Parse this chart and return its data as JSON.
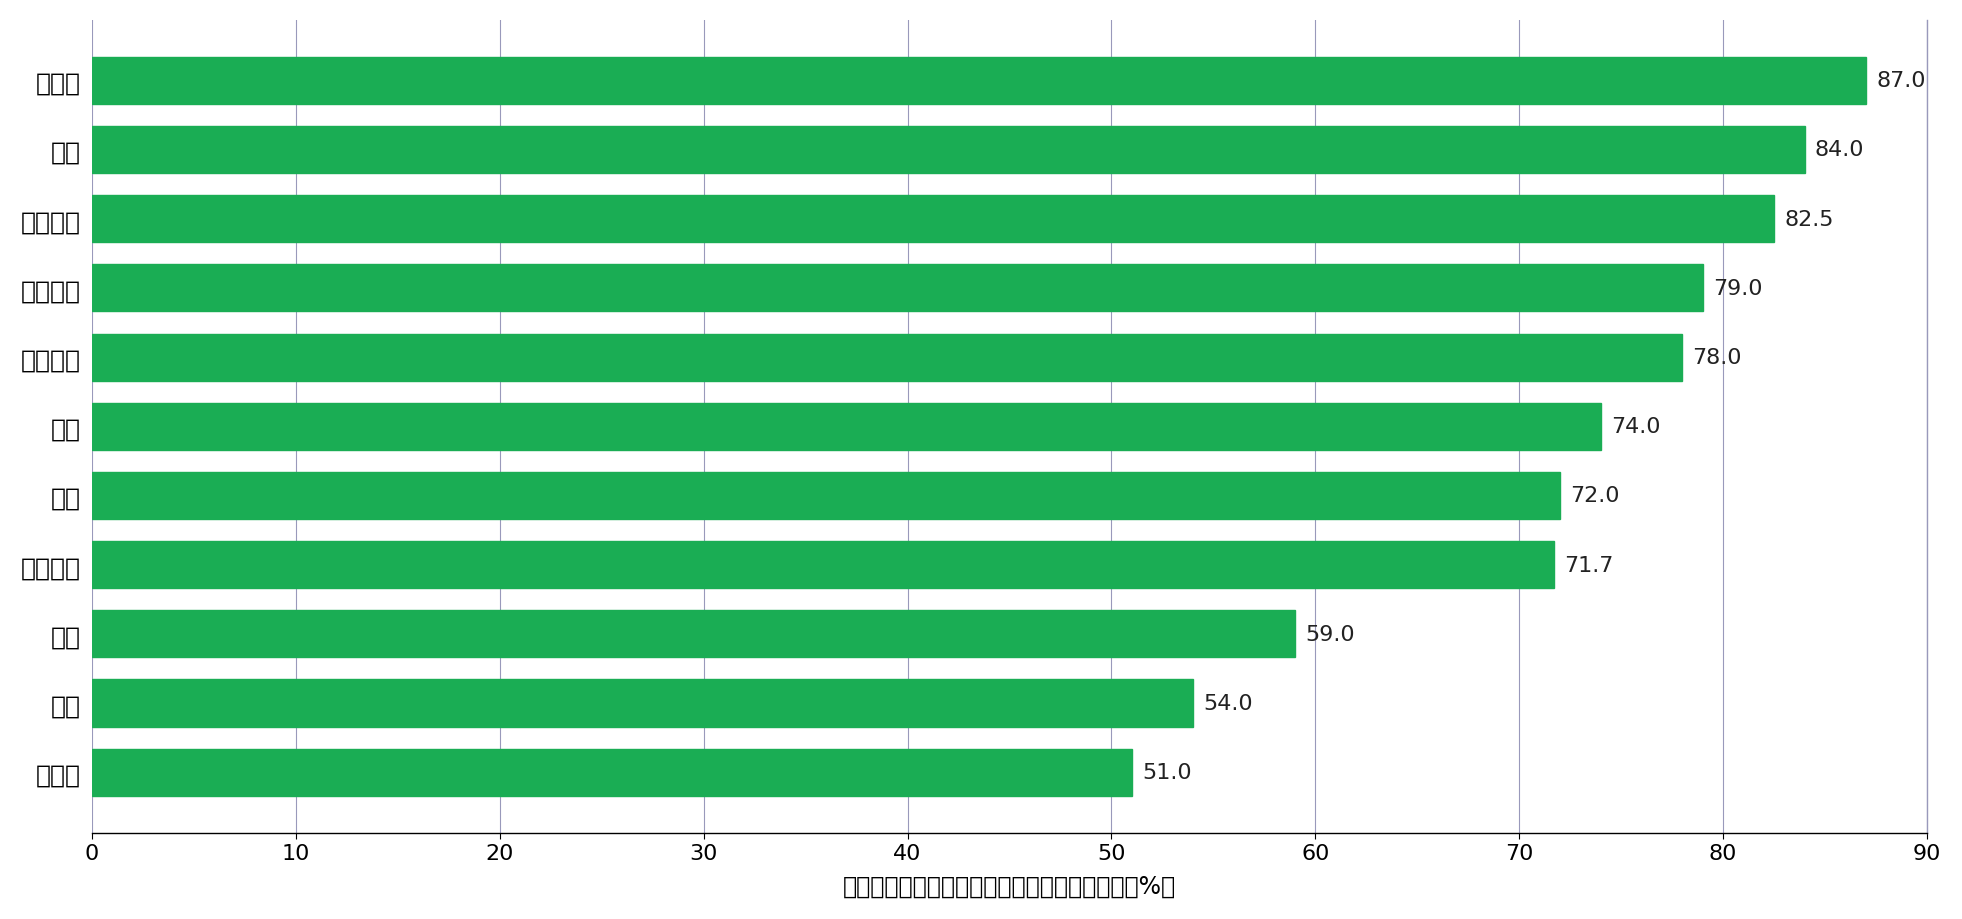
{
  "categories": [
    "菲律宾",
    "印尼",
    "印度",
    "中国香港",
    "泰国",
    "越南",
    "中国台湾",
    "马来西亚",
    "中国内地",
    "韩国",
    "新加坡"
  ],
  "values": [
    51.0,
    54.0,
    59.0,
    71.7,
    72.0,
    74.0,
    78.0,
    79.0,
    82.5,
    84.0,
    87.0
  ],
  "bar_color": "#1aad54",
  "xlabel": "已接种至少一剂疫苗的总人数除以总人口数量（%）",
  "xlim": [
    0,
    90
  ],
  "xticks": [
    0,
    10,
    20,
    30,
    40,
    50,
    60,
    70,
    80,
    90
  ],
  "background_color": "#ffffff",
  "grid_color": "#9999bb",
  "label_fontsize": 18,
  "tick_fontsize": 16,
  "value_fontsize": 16,
  "xlabel_fontsize": 17,
  "bar_height": 0.68
}
